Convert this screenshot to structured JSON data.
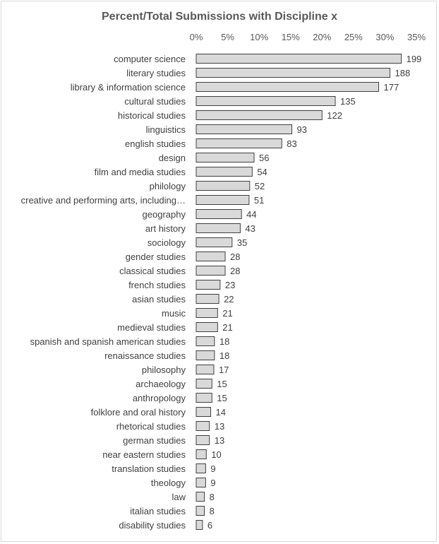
{
  "chart_data": {
    "type": "bar",
    "orientation": "horizontal",
    "title": "Percent/Total Submissions with Discipline x",
    "xlabel": "",
    "ylabel": "",
    "x_axis_position": "top",
    "xlim": [
      0,
      35
    ],
    "x_ticks": [
      "0%",
      "5%",
      "10%",
      "15%",
      "20%",
      "25%",
      "30%",
      "35%"
    ],
    "grid": false,
    "legend": "none",
    "bar_color": "#d9d9d9",
    "bar_edge_color": "#404040",
    "categories": [
      "computer science",
      "literary studies",
      "library & information science",
      "cultural studies",
      "historical studies",
      "linguistics",
      "english studies",
      "design",
      "film and media studies",
      "philology",
      "creative and performing arts, including…",
      "geography",
      "art history",
      "sociology",
      "gender studies",
      "classical studies",
      "french studies",
      "asian studies",
      "music",
      "medieval studies",
      "spanish and spanish american studies",
      "renaissance studies",
      "philosophy",
      "archaeology",
      "anthropology",
      "folklore and oral history",
      "rhetorical studies",
      "german studies",
      "near eastern studies",
      "translation studies",
      "theology",
      "law",
      "italian studies",
      "disability studies"
    ],
    "percent_values": [
      32.6,
      30.8,
      29.0,
      22.1,
      20.0,
      15.2,
      13.6,
      9.2,
      8.9,
      8.5,
      8.4,
      7.2,
      7.0,
      5.7,
      4.6,
      4.6,
      3.8,
      3.6,
      3.4,
      3.4,
      2.9,
      2.9,
      2.8,
      2.5,
      2.5,
      2.3,
      2.1,
      2.1,
      1.6,
      1.5,
      1.5,
      1.3,
      1.3,
      1.0
    ],
    "data_labels": [
      199,
      188,
      177,
      135,
      122,
      93,
      83,
      56,
      54,
      52,
      51,
      44,
      43,
      35,
      28,
      28,
      23,
      22,
      21,
      21,
      18,
      18,
      17,
      15,
      15,
      14,
      13,
      13,
      10,
      9,
      9,
      8,
      8,
      6
    ]
  }
}
